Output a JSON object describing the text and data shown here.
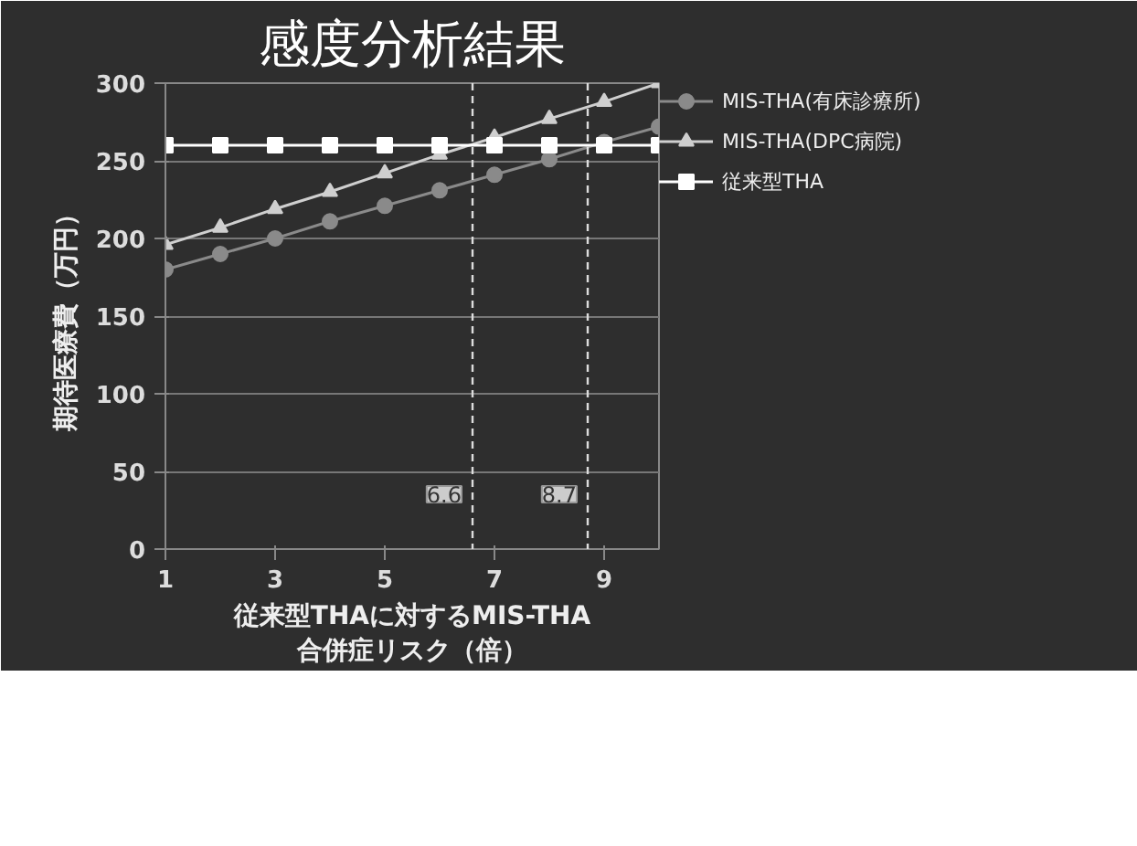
{
  "chart_data": {
    "type": "line",
    "title": "感度分析結果",
    "xlabel": "従来型THAに対するMIS-THA\n合併症リスク（倍）",
    "ylabel": "期待医療費（万円）",
    "x": [
      1,
      2,
      3,
      4,
      5,
      6,
      7,
      8,
      9,
      10
    ],
    "series": [
      {
        "name": "MIS-THA(有床診療所)",
        "color": "#8a8a8a",
        "marker": "circle",
        "values": [
          180,
          190,
          200,
          211,
          221,
          231,
          241,
          251,
          262,
          272
        ]
      },
      {
        "name": "MIS-THA(DPC病院)",
        "color": "#cfcfcf",
        "marker": "triangle",
        "values": [
          196,
          207,
          219,
          230,
          242,
          254,
          265,
          277,
          288,
          300
        ]
      },
      {
        "name": "従来型THA",
        "color": "#ffffff",
        "marker": "square",
        "values": [
          260,
          260,
          260,
          260,
          260,
          260,
          260,
          260,
          260,
          260
        ]
      }
    ],
    "xlim": [
      1,
      10
    ],
    "xticks": [
      1,
      3,
      5,
      7,
      9
    ],
    "ylim": [
      0,
      300
    ],
    "yticks": [
      0,
      50,
      100,
      150,
      200,
      250,
      300
    ],
    "ref_lines": [
      {
        "axis": "x",
        "value": 6.6,
        "label": "6.6",
        "color": "#dddddd",
        "line_style": "dashed"
      },
      {
        "axis": "x",
        "value": 8.7,
        "label": "8.7",
        "color": "#dddddd",
        "line_style": "dashed"
      }
    ],
    "grid": "y",
    "legend": "right"
  }
}
